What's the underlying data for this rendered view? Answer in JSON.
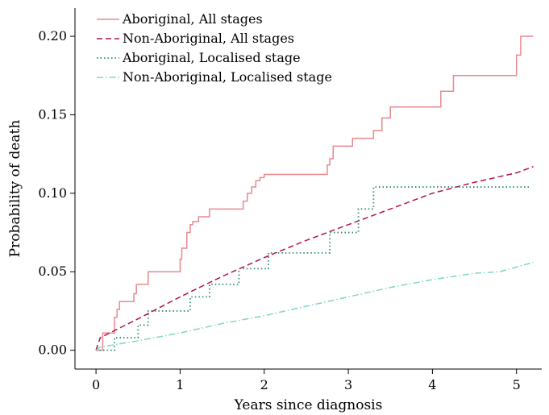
{
  "chart_data": {
    "type": "line",
    "xlabel": "Years since diagnosis",
    "ylabel": "Probability of death",
    "xlim": [
      -0.25,
      5.3
    ],
    "ylim": [
      -0.012,
      0.218
    ],
    "xticks": [
      0,
      1,
      2,
      3,
      4,
      5
    ],
    "xtick_labels": [
      "0",
      "1",
      "2",
      "3",
      "4",
      "5"
    ],
    "yticks": [
      0.0,
      0.05,
      0.1,
      0.15,
      0.2
    ],
    "ytick_labels": [
      "0.00",
      "0.05",
      "0.10",
      "0.15",
      "0.20"
    ],
    "grid": false,
    "legend_position": "top-left",
    "series": [
      {
        "name": "Aboriginal, All stages",
        "color": "#e8898e",
        "style": "solid",
        "step": true,
        "x": [
          0,
          0.08,
          0.22,
          0.25,
          0.28,
          0.35,
          0.45,
          0.48,
          0.55,
          0.62,
          1.0,
          1.02,
          1.08,
          1.12,
          1.15,
          1.22,
          1.35,
          1.45,
          1.75,
          1.8,
          1.85,
          1.9,
          1.95,
          2.0,
          2.1,
          2.2,
          2.75,
          2.78,
          2.82,
          2.9,
          3.05,
          3.3,
          3.4,
          3.5,
          3.6,
          4.1,
          4.25,
          4.35,
          5.0,
          5.05,
          5.1
        ],
        "values": [
          0.0,
          0.011,
          0.021,
          0.026,
          0.031,
          0.031,
          0.036,
          0.042,
          0.042,
          0.05,
          0.058,
          0.065,
          0.075,
          0.08,
          0.082,
          0.085,
          0.09,
          0.09,
          0.095,
          0.1,
          0.104,
          0.108,
          0.11,
          0.112,
          0.112,
          0.112,
          0.118,
          0.122,
          0.13,
          0.13,
          0.135,
          0.14,
          0.148,
          0.155,
          0.155,
          0.165,
          0.175,
          0.175,
          0.188,
          0.2,
          0.2
        ],
        "x_end": 5.2
      },
      {
        "name": "Non-Aboriginal, All stages",
        "color": "#b5124b",
        "style": "dashed",
        "step": false,
        "x": [
          0,
          0.05,
          0.2,
          0.5,
          1.0,
          1.5,
          2.0,
          2.5,
          3.0,
          3.5,
          4.0,
          4.5,
          5.0,
          5.2
        ],
        "values": [
          0.0,
          0.008,
          0.012,
          0.02,
          0.034,
          0.047,
          0.059,
          0.07,
          0.08,
          0.09,
          0.1,
          0.107,
          0.113,
          0.117
        ]
      },
      {
        "name": "Aboriginal, Localised stage",
        "color": "#2e8b7c",
        "style": "dotted",
        "step": true,
        "x": [
          0,
          0.22,
          0.5,
          0.62,
          1.0,
          1.12,
          1.35,
          1.7,
          2.05,
          2.78,
          3.12,
          3.3
        ],
        "values": [
          0.0,
          0.008,
          0.016,
          0.025,
          0.025,
          0.034,
          0.042,
          0.052,
          0.062,
          0.075,
          0.09,
          0.104
        ],
        "x_end": 5.15
      },
      {
        "name": "Non-Aboriginal, Localised stage",
        "color": "#7fd6c8",
        "style": "dashdot",
        "step": false,
        "x": [
          0,
          0.05,
          0.5,
          1.0,
          1.5,
          2.0,
          2.5,
          3.0,
          3.5,
          4.0,
          4.5,
          4.8,
          5.0,
          5.2
        ],
        "values": [
          0.0,
          0.002,
          0.006,
          0.011,
          0.017,
          0.022,
          0.028,
          0.034,
          0.04,
          0.045,
          0.049,
          0.05,
          0.053,
          0.056
        ]
      }
    ]
  }
}
